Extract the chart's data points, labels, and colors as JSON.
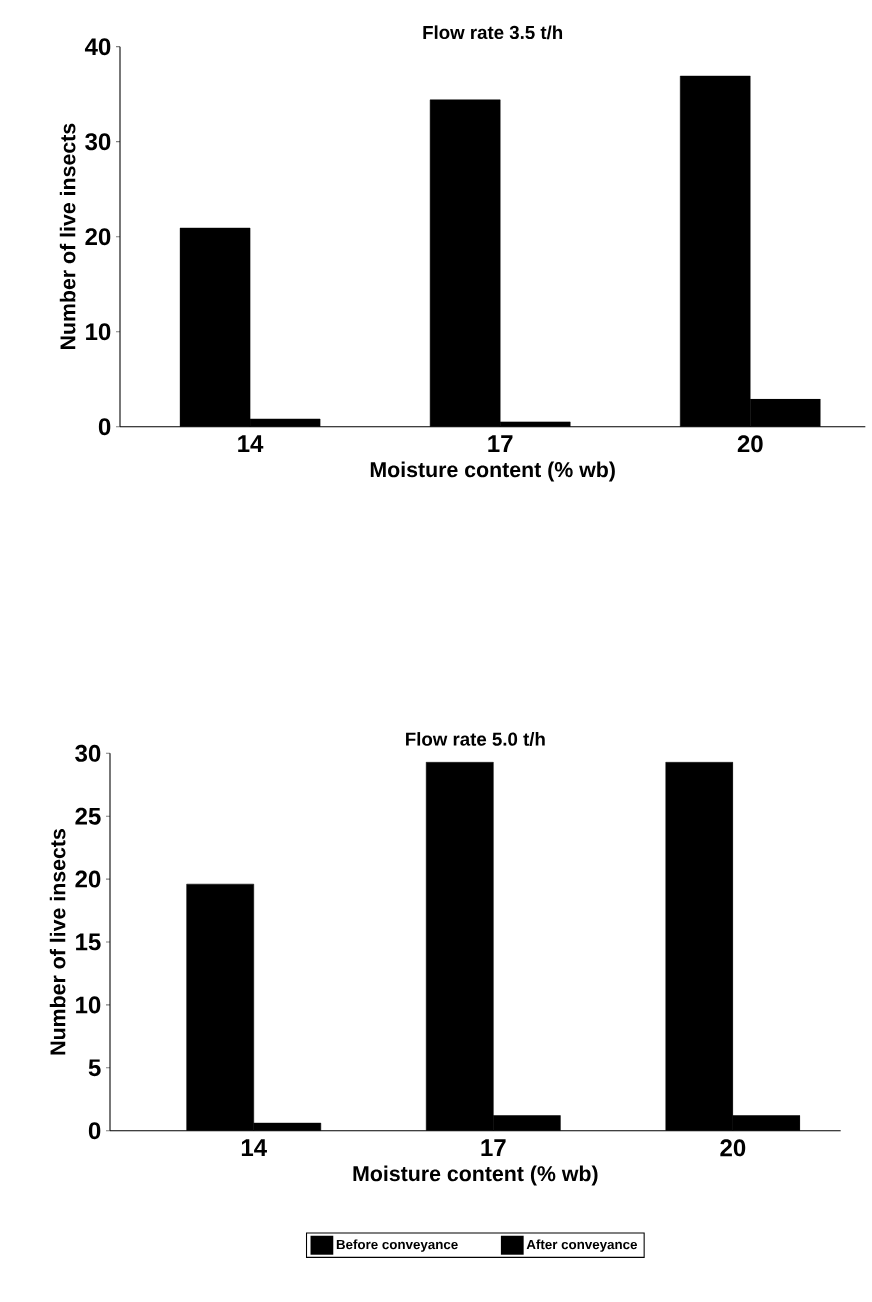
{
  "chart_data": [
    {
      "type": "bar",
      "title": "Flow rate 3.5 t/h",
      "xlabel": "Moisture content (% wb)",
      "ylabel": "Number of live insects",
      "categories": [
        "14",
        "17",
        "20"
      ],
      "series": [
        {
          "color": "#000000",
          "values": [
            20.9,
            34.4,
            36.9
          ]
        },
        {
          "color": "#000000",
          "values": [
            0.8,
            0.5,
            2.9
          ]
        }
      ],
      "ylim": [
        0,
        40
      ],
      "yticks": [
        0,
        10,
        20,
        30,
        40
      ]
    },
    {
      "type": "bar",
      "title": "Flow rate 5.0 t/h",
      "xlabel": "Moisture content (% wb)",
      "ylabel": "Number of live insects",
      "categories": [
        "14",
        "17",
        "20"
      ],
      "series": [
        {
          "name": "Before conveyance",
          "color": "#000000",
          "values": [
            19.6,
            29.3,
            29.3
          ]
        },
        {
          "name": "After conveyance",
          "color": "#000000",
          "values": [
            0.6,
            1.2,
            1.2
          ]
        }
      ],
      "ylim": [
        0,
        30
      ],
      "yticks": [
        0,
        5,
        10,
        15,
        20,
        25,
        30
      ],
      "legend": "bottom"
    }
  ]
}
